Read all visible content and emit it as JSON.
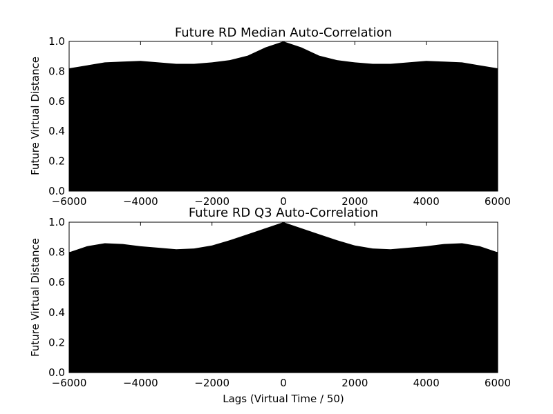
{
  "figure": {
    "xlabel": "Lags (Virtual Time / 50)"
  },
  "chart_data": [
    {
      "type": "area",
      "title": "Future RD Median Auto-Correlation",
      "xlabel": "",
      "ylabel": "Future Virtual Distance",
      "xlim": [
        -6000,
        6000
      ],
      "ylim": [
        0,
        1.0
      ],
      "xticks": [
        "-6000",
        "-4000",
        "-2000",
        "0",
        "2000",
        "4000",
        "6000"
      ],
      "yticks": [
        "0.0",
        "0.2",
        "0.4",
        "0.6",
        "0.8",
        "1.0"
      ],
      "fill_color": "#000000",
      "grid": false,
      "x": [
        -6000,
        -5500,
        -5000,
        -4500,
        -4000,
        -3500,
        -3000,
        -2500,
        -2000,
        -1500,
        -1000,
        -500,
        0,
        500,
        1000,
        1500,
        2000,
        2500,
        3000,
        3500,
        4000,
        4500,
        5000,
        5500,
        6000
      ],
      "values": [
        0.82,
        0.84,
        0.86,
        0.865,
        0.87,
        0.86,
        0.85,
        0.85,
        0.86,
        0.875,
        0.905,
        0.96,
        1.0,
        0.96,
        0.905,
        0.875,
        0.86,
        0.85,
        0.85,
        0.86,
        0.87,
        0.865,
        0.86,
        0.84,
        0.82
      ]
    },
    {
      "type": "area",
      "title": "Future RD Q3 Auto-Correlation",
      "xlabel": "Lags (Virtual Time / 50)",
      "ylabel": "Future Virtual Distance",
      "xlim": [
        -6000,
        6000
      ],
      "ylim": [
        0,
        1.0
      ],
      "xticks": [
        "-6000",
        "-4000",
        "-2000",
        "0",
        "2000",
        "4000",
        "6000"
      ],
      "yticks": [
        "0.0",
        "0.2",
        "0.4",
        "0.6",
        "0.8",
        "1.0"
      ],
      "fill_color": "#000000",
      "grid": false,
      "x": [
        -6000,
        -5500,
        -5000,
        -4500,
        -4000,
        -3500,
        -3000,
        -2500,
        -2000,
        -1500,
        -1000,
        -500,
        0,
        500,
        1000,
        1500,
        2000,
        2500,
        3000,
        3500,
        4000,
        4500,
        5000,
        5500,
        6000
      ],
      "values": [
        0.8,
        0.84,
        0.86,
        0.855,
        0.84,
        0.83,
        0.82,
        0.825,
        0.845,
        0.88,
        0.92,
        0.96,
        1.0,
        0.96,
        0.92,
        0.88,
        0.845,
        0.825,
        0.82,
        0.83,
        0.84,
        0.855,
        0.86,
        0.84,
        0.8
      ]
    }
  ]
}
